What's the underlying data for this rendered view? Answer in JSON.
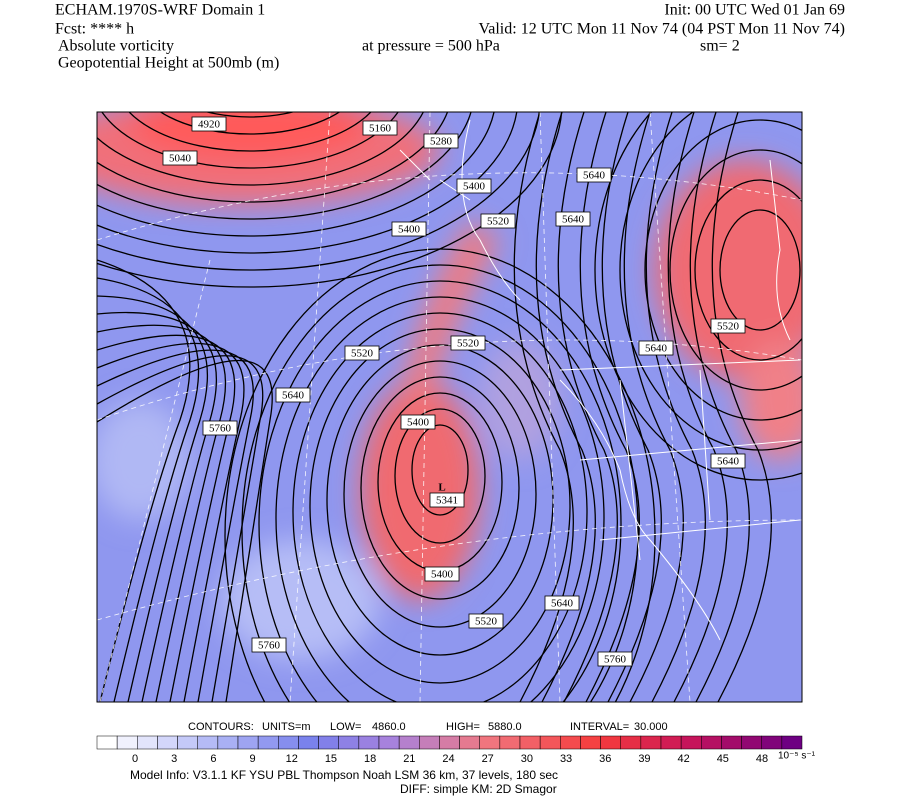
{
  "header": {
    "title": "ECHAM.1970S-WRF Domain 1",
    "init": "Init: 00 UTC Wed 01 Jan 69",
    "fcst": "Fcst: **** h",
    "valid": "Valid: 12 UTC Mon 11 Nov 74 (04 PST Mon 11 Nov 74)",
    "field1": "Absolute vorticity",
    "pressure": "at pressure =  500 hPa",
    "smooth": "sm= 2",
    "field2": "Geopotential Height at 500mb (m)"
  },
  "map": {
    "contour_labels": [
      "4920",
      "5160",
      "5040",
      "5280",
      "5400",
      "5640",
      "5520",
      "5640",
      "5400",
      "5520",
      "5520",
      "5640",
      "5640",
      "5520",
      "5400",
      "5760",
      "5640",
      "5400",
      "5520",
      "5640",
      "5760",
      "5760"
    ],
    "low_symbol": "L",
    "low_value": "5341"
  },
  "contour_info": {
    "label": "CONTOURS:",
    "units": "UNITS=m",
    "low_label": "LOW=",
    "low": "4860.0",
    "high_label": "HIGH=",
    "high": "5880.0",
    "interval_label": "INTERVAL=",
    "interval": "30.000"
  },
  "colorbar": {
    "ticks": [
      0,
      3,
      6,
      9,
      12,
      15,
      18,
      21,
      24,
      27,
      30,
      33,
      36,
      39,
      42,
      45,
      48
    ],
    "units": "10⁻⁵ s⁻¹"
  },
  "footer": {
    "model_info": "Model Info: V3.1.1    KF     YSU PBL   Thompson     Noah LSM   36 km,    37 levels,   180 sec",
    "diff": "DIFF: simple KM: 2D Smagor"
  }
}
